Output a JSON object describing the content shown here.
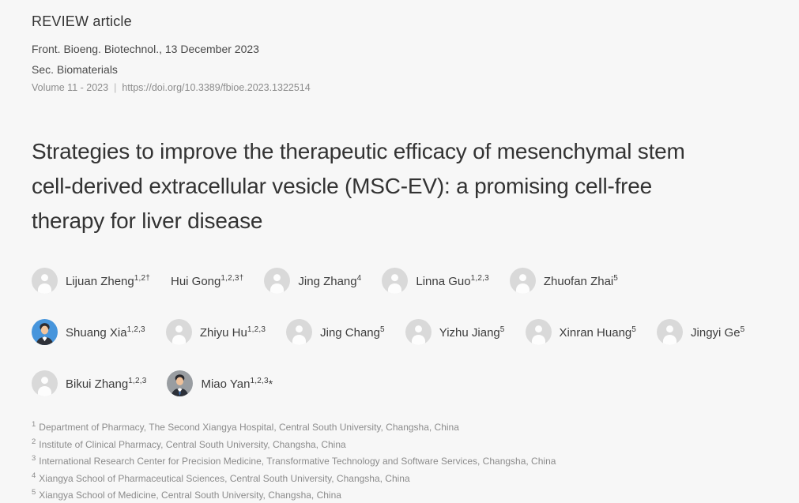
{
  "header": {
    "article_type": "REVIEW article",
    "journal_date_line": "Front. Bioeng. Biotechnol., 13 December 2023",
    "section_line": "Sec. Biomaterials",
    "volume_line": "Volume 11 - 2023",
    "separator": "|",
    "doi_link": "https://doi.org/10.3389/fbioe.2023.1322514"
  },
  "article": {
    "title": "Strategies to improve the therapeutic efficacy of mesenchymal stem cell-derived extracellular vesicle (MSC-EV): a promising cell-free therapy for liver disease"
  },
  "authors": [
    {
      "name": "Lijuan Zheng",
      "sup": "1,2†",
      "suffix": "",
      "avatar": "placeholder"
    },
    {
      "name": "Hui Gong",
      "sup": "1,2,3†",
      "suffix": "",
      "avatar": "none"
    },
    {
      "name": "Jing Zhang",
      "sup": "4",
      "suffix": "",
      "avatar": "placeholder"
    },
    {
      "name": "Linna Guo",
      "sup": "1,2,3",
      "suffix": "",
      "avatar": "placeholder"
    },
    {
      "name": "Zhuofan Zhai",
      "sup": "5",
      "suffix": "",
      "avatar": "placeholder"
    },
    {
      "name": "Shuang Xia",
      "sup": "1,2,3",
      "suffix": "",
      "avatar": "photo-blue"
    },
    {
      "name": "Zhiyu Hu",
      "sup": "1,2,3",
      "suffix": "",
      "avatar": "placeholder"
    },
    {
      "name": "Jing Chang",
      "sup": "5",
      "suffix": "",
      "avatar": "placeholder"
    },
    {
      "name": "Yizhu Jiang",
      "sup": "5",
      "suffix": "",
      "avatar": "placeholder"
    },
    {
      "name": "Xinran Huang",
      "sup": "5",
      "suffix": "",
      "avatar": "placeholder"
    },
    {
      "name": "Jingyi Ge",
      "sup": "5",
      "suffix": "",
      "avatar": "placeholder"
    },
    {
      "name": "Bikui Zhang",
      "sup": "1,2,3",
      "suffix": "",
      "avatar": "placeholder"
    },
    {
      "name": "Miao Yan",
      "sup": "1,2,3",
      "suffix": "*",
      "avatar": "photo-gray"
    }
  ],
  "affiliations": [
    {
      "num": "1",
      "text": "Department of Pharmacy, The Second Xiangya Hospital, Central South University, Changsha, China"
    },
    {
      "num": "2",
      "text": "Institute of Clinical Pharmacy, Central South University, Changsha, China"
    },
    {
      "num": "3",
      "text": "International Research Center for Precision Medicine, Transformative Technology and Software Services, Changsha, China"
    },
    {
      "num": "4",
      "text": "Xiangya School of Pharmaceutical Sciences, Central South University, Changsha, China"
    },
    {
      "num": "5",
      "text": "Xiangya School of Medicine, Central South University, Changsha, China"
    }
  ],
  "icons": {
    "avatar_placeholder": "person-icon"
  },
  "colors": {
    "background": "#f7f7f7",
    "heading_text": "#333333",
    "meta_text": "#4a4a4a",
    "muted_text": "#8c8c8c",
    "author_text": "#3d3d3d",
    "avatar_placeholder_bg": "#d9d9d9",
    "avatar_photo_blue_bg": "#4795dc",
    "avatar_photo_gray_bg": "#999da1"
  }
}
